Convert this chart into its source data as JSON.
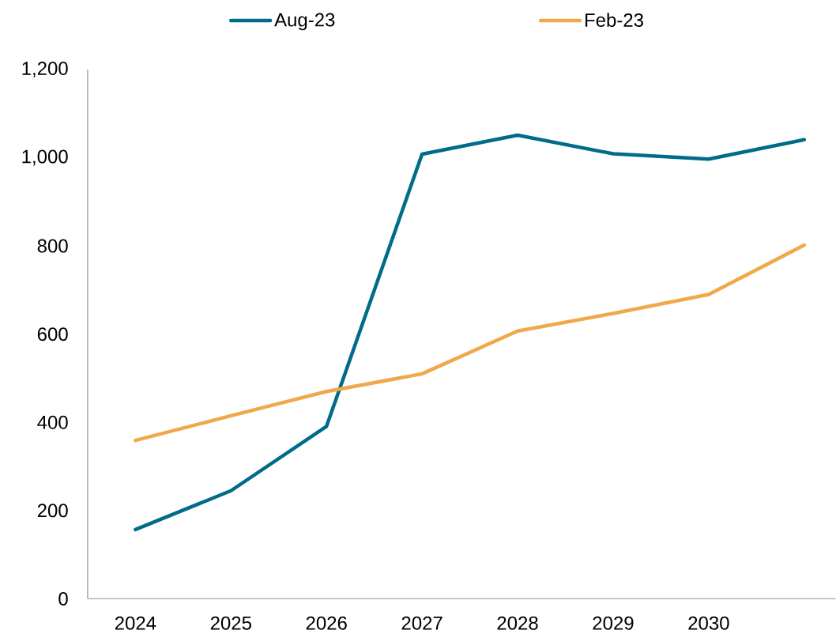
{
  "chart_data": {
    "type": "line",
    "categories": [
      "2024",
      "2025",
      "2026",
      "2027",
      "2028",
      "2029",
      "2030",
      null
    ],
    "series": [
      {
        "name": "Aug-23",
        "color": "#006c89",
        "values": [
          157,
          245,
          391,
          1008,
          1051,
          1009,
          997,
          1041
        ]
      },
      {
        "name": "Feb-23",
        "color": "#f0a848",
        "values": [
          359,
          415,
          470,
          510,
          607,
          647,
          690,
          802
        ]
      }
    ],
    "ylim": [
      0,
      1200
    ],
    "yticks": [
      0,
      200,
      400,
      600,
      800,
      {
        "value": 1000,
        "label": "1,000"
      },
      {
        "value": 1200,
        "label": "1,200"
      }
    ],
    "legend": "top",
    "line_style": "solid"
  }
}
